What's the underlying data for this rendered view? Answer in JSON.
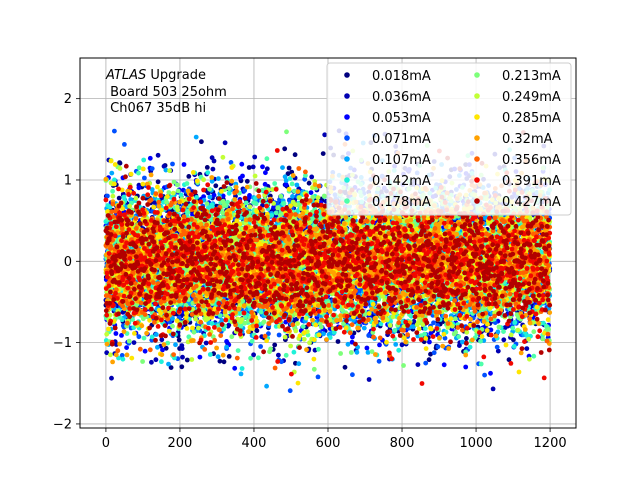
{
  "chart_data": {
    "type": "scatter",
    "title": "",
    "xlabel": "",
    "ylabel": "",
    "xlim": [
      -70,
      1270
    ],
    "ylim": [
      -2.05,
      2.5
    ],
    "xticks": [
      0,
      200,
      400,
      600,
      800,
      1000,
      1200
    ],
    "yticks": [
      -2,
      -1,
      0,
      1,
      2
    ],
    "grid": true,
    "legend_placement": "top-right",
    "legend_columns": 2,
    "annotation": {
      "italic": "ATLAS",
      "rest": " Upgrade",
      "line2": " Board 503 25ohm",
      "line3": " Ch067 35dB hi"
    },
    "points_per_series": 1200,
    "series": [
      {
        "name": "0.018mA",
        "color": "#00007f",
        "center": 0.0,
        "spread": 0.5
      },
      {
        "name": "0.036mA",
        "color": "#0000b2",
        "center": 0.0,
        "spread": 0.5
      },
      {
        "name": "0.053mA",
        "color": "#0000ff",
        "center": 0.0,
        "spread": 0.48
      },
      {
        "name": "0.071mA",
        "color": "#0050ff",
        "center": 0.0,
        "spread": 0.46
      },
      {
        "name": "0.107mA",
        "color": "#00a8ff",
        "center": 0.0,
        "spread": 0.45
      },
      {
        "name": "0.142mA",
        "color": "#1ef1d9",
        "center": 0.0,
        "spread": 0.44
      },
      {
        "name": "0.178mA",
        "color": "#4dffaa",
        "center": 0.0,
        "spread": 0.43
      },
      {
        "name": "0.213mA",
        "color": "#7dff7a",
        "center": 0.0,
        "spread": 0.42
      },
      {
        "name": "0.249mA",
        "color": "#c1ff36",
        "center": 0.0,
        "spread": 0.41
      },
      {
        "name": "0.285mA",
        "color": "#ffe600",
        "center": 0.0,
        "spread": 0.41
      },
      {
        "name": "0.32mA",
        "color": "#ffa200",
        "center": 0.0,
        "spread": 0.4
      },
      {
        "name": "0.356mA",
        "color": "#ff6200",
        "center": 0.0,
        "spread": 0.4
      },
      {
        "name": "0.391mA",
        "color": "#f10700",
        "center": 0.0,
        "spread": 0.4
      },
      {
        "name": "0.427mA",
        "color": "#b20000",
        "center": 0.0,
        "spread": 0.39
      }
    ]
  }
}
